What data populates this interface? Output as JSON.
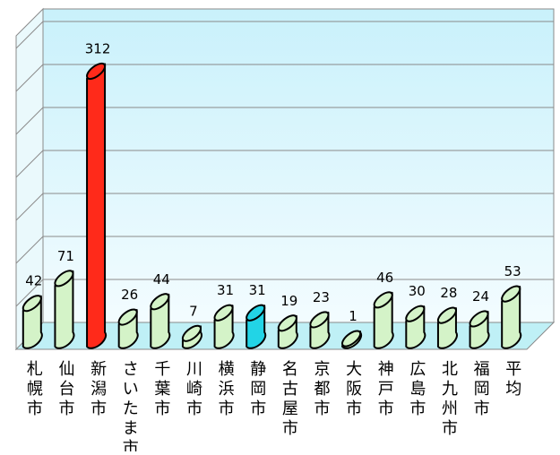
{
  "chart_data": {
    "type": "bar",
    "style": "3d-cylinder",
    "title": "",
    "xlabel": "",
    "ylabel": "",
    "ylim": [
      0,
      350
    ],
    "grid": true,
    "legend": "none",
    "categories": [
      "札幌市",
      "仙台市",
      "新潟市",
      "さいたま市",
      "千葉市",
      "川崎市",
      "横浜市",
      "静岡市",
      "名古屋市",
      "京都市",
      "大阪市",
      "神戸市",
      "広島市",
      "北九州市",
      "福岡市",
      "平均"
    ],
    "series": [
      {
        "values": [
          42,
          71,
          312,
          26,
          44,
          7,
          31,
          31,
          19,
          23,
          1,
          46,
          30,
          28,
          24,
          53
        ]
      }
    ],
    "highlights": {
      "2": "#ff2a1a",
      "7": "#22d4e6"
    },
    "colors": {
      "bar": "#d4f3c8",
      "bar_outline": "#000000",
      "back_wall": "#e2f8fd",
      "floor": "#bff0f6",
      "gridline": "#8a8a8a"
    }
  }
}
